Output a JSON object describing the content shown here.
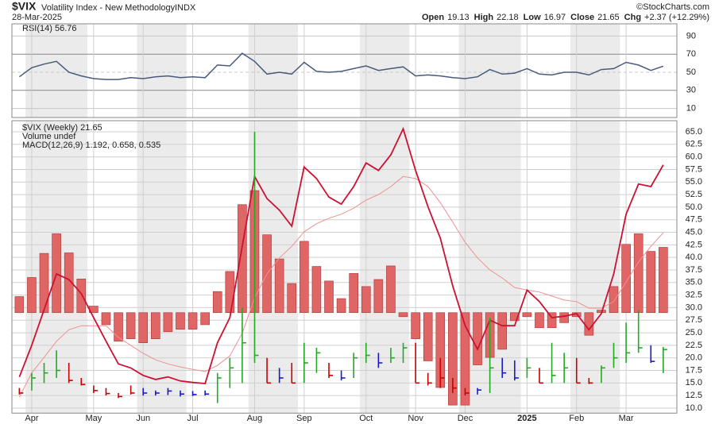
{
  "chart_data": {
    "type": "ohlc",
    "symbol": "$VIX",
    "name": "Volatility Index - New Methodology",
    "exchange": "INDX",
    "date": "28-Mar-2025",
    "copyright": "©StockCharts.com",
    "quote": [
      {
        "label": "Open",
        "value": 19.13
      },
      {
        "label": "High",
        "value": 22.18
      },
      {
        "label": "Low",
        "value": 16.97
      },
      {
        "label": "Close",
        "value": 21.65
      },
      {
        "label": "Chg",
        "value": "+2.37 (+12.29%)"
      }
    ],
    "rsi": {
      "label": "RSI(14) 56.76",
      "color": "#4a5a7a",
      "ylim": [
        0,
        100
      ],
      "yticks": [
        10,
        30,
        50,
        70,
        90
      ],
      "values": [
        45,
        55,
        59,
        62,
        50,
        46,
        43,
        42,
        42,
        44,
        43,
        45,
        46,
        44,
        45,
        44,
        58,
        57,
        71,
        62,
        48,
        50,
        48,
        61,
        51,
        50,
        51,
        54,
        57,
        52,
        54,
        56,
        46,
        47,
        46,
        44,
        43,
        45,
        53,
        48,
        49,
        54,
        48,
        47,
        50,
        50,
        47,
        53,
        54,
        61,
        58,
        52,
        56.76
      ]
    },
    "legend": [
      "$VIX (Weekly) 21.65",
      "Volume undef",
      "MACD(12,26,9) 1.192, 0.658, 0.535"
    ],
    "ylim": [
      9,
      66.5
    ],
    "yticks": [
      {
        "value": 10,
        "label": "10.0"
      },
      {
        "value": 12.5,
        "label": "12.5"
      },
      {
        "value": 15,
        "label": "15.0"
      },
      {
        "value": 17.5,
        "label": "17.5"
      },
      {
        "value": 20,
        "label": "20.0"
      },
      {
        "value": 22.5,
        "label": "22.5"
      },
      {
        "value": 25,
        "label": "25.0"
      },
      {
        "value": 27.5,
        "label": "27.5"
      },
      {
        "value": 30,
        "label": "30.0"
      },
      {
        "value": 32.5,
        "label": "32.5"
      },
      {
        "value": 35,
        "label": "35.0"
      },
      {
        "value": 37.5,
        "label": "37.5"
      },
      {
        "value": 40,
        "label": "40.0"
      },
      {
        "value": 42.5,
        "label": "42.5"
      },
      {
        "value": 45,
        "label": "45.0"
      },
      {
        "value": 47.5,
        "label": "47.5"
      },
      {
        "value": 50,
        "label": "50.0"
      },
      {
        "value": 52.5,
        "label": "52.5"
      },
      {
        "value": 55,
        "label": "55.0"
      },
      {
        "value": 57.5,
        "label": "57.5"
      },
      {
        "value": 60,
        "label": "60.0"
      },
      {
        "value": 62.5,
        "label": "62.5"
      },
      {
        "value": 65,
        "label": "65.0"
      }
    ],
    "xlim": [
      -0.6,
      53.1
    ],
    "xticks": [
      {
        "value": 1,
        "label": "Apr"
      },
      {
        "value": 6,
        "label": "May"
      },
      {
        "value": 10,
        "label": "Jun"
      },
      {
        "value": 14,
        "label": "Jul"
      },
      {
        "value": 19,
        "label": "Aug"
      },
      {
        "value": 23,
        "label": "Sep"
      },
      {
        "value": 28,
        "label": "Oct"
      },
      {
        "value": 32,
        "label": "Nov"
      },
      {
        "value": 36,
        "label": "Dec"
      },
      {
        "value": 41,
        "label": "2025"
      },
      {
        "value": 45,
        "label": "Feb"
      },
      {
        "value": 49,
        "label": "Mar"
      }
    ],
    "grid": true,
    "high": [
      14,
      17,
      19,
      21.5,
      19,
      16,
      14.5,
      14,
      13,
      14.5,
      14,
      13.5,
      14,
      13.5,
      13.4,
      13.5,
      17,
      20,
      30,
      65,
      20,
      18,
      19,
      23,
      22,
      19,
      17.5,
      21,
      23,
      21,
      22,
      23,
      23,
      17,
      20,
      16,
      14,
      14,
      28,
      20,
      19.5,
      20,
      18,
      23,
      21,
      20,
      16,
      18.5,
      23,
      27,
      29.5,
      22.5,
      22.18
    ],
    "low": [
      12.7,
      13.5,
      15,
      16,
      15,
      14.5,
      13,
      12.5,
      12,
      12.7,
      12.5,
      12.5,
      12.6,
      12.3,
      12.4,
      12.5,
      11,
      14,
      15,
      19,
      15,
      15,
      15,
      15,
      17,
      16,
      15.5,
      16,
      19,
      18,
      19,
      19,
      15,
      14.5,
      14,
      13,
      12.5,
      12.7,
      13,
      16,
      15.5,
      16,
      15,
      15,
      15,
      15,
      14.8,
      15,
      18,
      19,
      21,
      19,
      16.97
    ],
    "close": [
      13,
      16,
      17,
      17.5,
      15.5,
      14.7,
      13.5,
      12.9,
      12.3,
      13,
      13,
      13,
      13.4,
      12.8,
      12.7,
      12.8,
      16,
      18,
      23,
      20.5,
      15,
      16,
      15,
      19,
      21,
      16.5,
      16,
      20,
      20.5,
      19,
      20,
      22,
      15,
      15,
      16,
      14,
      13,
      13.6,
      18,
      17,
      16,
      18,
      15,
      16.5,
      18,
      15,
      15,
      18,
      20,
      21,
      22,
      19.3,
      21.65
    ],
    "bar_colors": [
      "#cc0000",
      "#22aa22",
      "#22aa22",
      "#22aa22",
      "#cc0000",
      "#cc0000",
      "#cc0000",
      "#cc0000",
      "#cc0000",
      "#cc0000",
      "#1a1acc",
      "#1a1acc",
      "#1a1acc",
      "#1a1acc",
      "#1a1acc",
      "#1a1acc",
      "#22aa22",
      "#22aa22",
      "#22aa22",
      "#22aa22",
      "#cc0000",
      "#1a1acc",
      "#cc0000",
      "#22aa22",
      "#22aa22",
      "#cc0000",
      "#1a1acc",
      "#22aa22",
      "#22aa22",
      "#1a1acc",
      "#22aa22",
      "#22aa22",
      "#cc0000",
      "#cc0000",
      "#cc0000",
      "#cc0000",
      "#cc0000",
      "#1a1acc",
      "#22aa22",
      "#1a1acc",
      "#1a1acc",
      "#22aa22",
      "#cc0000",
      "#22aa22",
      "#22aa22",
      "#cc0000",
      "#cc0000",
      "#22aa22",
      "#22aa22",
      "#22aa22",
      "#22aa22",
      "#1a1acc",
      "#22aa22"
    ],
    "histogram_baseline": 29,
    "histogram": {
      "color": "#e06666",
      "values": [
        32.2,
        36,
        40.8,
        44.7,
        40.9,
        35.7,
        30.3,
        26.6,
        23.3,
        23.8,
        23,
        23.8,
        25.2,
        25.7,
        25.7,
        26.6,
        33.2,
        37.2,
        50.5,
        53.3,
        44.5,
        39.7,
        34.8,
        43.2,
        38.2,
        35.3,
        31.8,
        36.8,
        34.2,
        35.6,
        38.3,
        28.2,
        23.8,
        19.4,
        14.1,
        10.6,
        10.6,
        18.6,
        20.1,
        21.7,
        27.4,
        28.2,
        26,
        26,
        27,
        28.2,
        24.5,
        29.5,
        34.2,
        42.6,
        44.7,
        41.2,
        42
      ]
    },
    "macd": {
      "color": "#cc1133",
      "values": [
        16.2,
        22.5,
        29.6,
        36.7,
        35.6,
        32.8,
        28,
        23.3,
        18.8,
        18,
        16.5,
        15.7,
        16.2,
        15.4,
        15.1,
        14.9,
        23,
        28,
        42.2,
        56.1,
        51.7,
        49.4,
        46.2,
        58,
        55.7,
        52,
        50.6,
        54.1,
        58.8,
        57.3,
        60.4,
        65.6,
        57.3,
        50.1,
        43.8,
        34.3,
        26.4,
        21.7,
        27.5,
        26.4,
        26.4,
        33.5,
        31.2,
        28,
        28.3,
        28.8,
        25.6,
        28.8,
        36.7,
        48.6,
        54.6,
        54.1,
        58.4
      ]
    },
    "signal": {
      "color": "#f09090",
      "values": [
        12.2,
        17,
        20.1,
        23.3,
        25.6,
        26.4,
        26.4,
        26.4,
        24.1,
        22.5,
        20.9,
        19.6,
        18.8,
        18.2,
        17.7,
        17.3,
        18.5,
        20.4,
        24.9,
        32,
        36.7,
        39.9,
        42.2,
        45.1,
        46.7,
        47.8,
        48.6,
        49.8,
        51.4,
        52.5,
        54.1,
        56.1,
        55.7,
        54.1,
        50.9,
        47,
        43,
        39.9,
        37.5,
        35.9,
        34,
        33.5,
        33.1,
        32.3,
        31.5,
        31.2,
        29.9,
        29.9,
        31.2,
        35.1,
        39.1,
        42.2,
        44.9
      ]
    }
  }
}
